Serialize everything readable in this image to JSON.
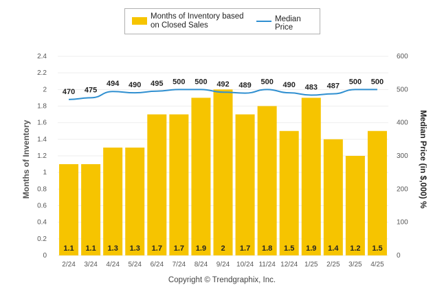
{
  "legend": {
    "bar_label": "Months of Inventory based on Closed Sales",
    "line_label": "Median Price"
  },
  "copyright": "Copyright © Trendgraphix, Inc.",
  "colors": {
    "bar": "#f6c400",
    "line": "#2f8fd0",
    "axis_text": "#555555",
    "grid": "#eeeeee",
    "value_label": "#222222"
  },
  "chart_data": {
    "type": "bar",
    "categories": [
      "2/24",
      "3/24",
      "4/24",
      "5/24",
      "6/24",
      "7/24",
      "8/24",
      "9/24",
      "10/24",
      "11/24",
      "12/24",
      "1/25",
      "2/25",
      "3/25",
      "4/25"
    ],
    "series": [
      {
        "name": "Months of Inventory based on Closed Sales",
        "type": "bar",
        "axis": "left",
        "values": [
          1.1,
          1.1,
          1.3,
          1.3,
          1.7,
          1.7,
          1.9,
          2,
          1.7,
          1.8,
          1.5,
          1.9,
          1.4,
          1.2,
          1.5
        ]
      },
      {
        "name": "Median Price",
        "type": "line",
        "axis": "right",
        "values": [
          470,
          475,
          494,
          490,
          495,
          500,
          500,
          492,
          489,
          500,
          490,
          483,
          487,
          500,
          500
        ]
      }
    ],
    "ylabel_left": "Months of Inventory",
    "ylabel_right": "Median Price (in $,000) %",
    "ylim_left": [
      0,
      2.4
    ],
    "yticks_left": [
      "0",
      "0.2",
      "0.4",
      "0.6",
      "0.8",
      "1",
      "1.2",
      "1.4",
      "1.6",
      "1.8",
      "2",
      "2.2",
      "2.4"
    ],
    "ylim_right": [
      0,
      600
    ],
    "yticks_right": [
      "0",
      "100",
      "200",
      "300",
      "400",
      "500",
      "600"
    ],
    "grid": true,
    "legend_position": "top-center"
  }
}
